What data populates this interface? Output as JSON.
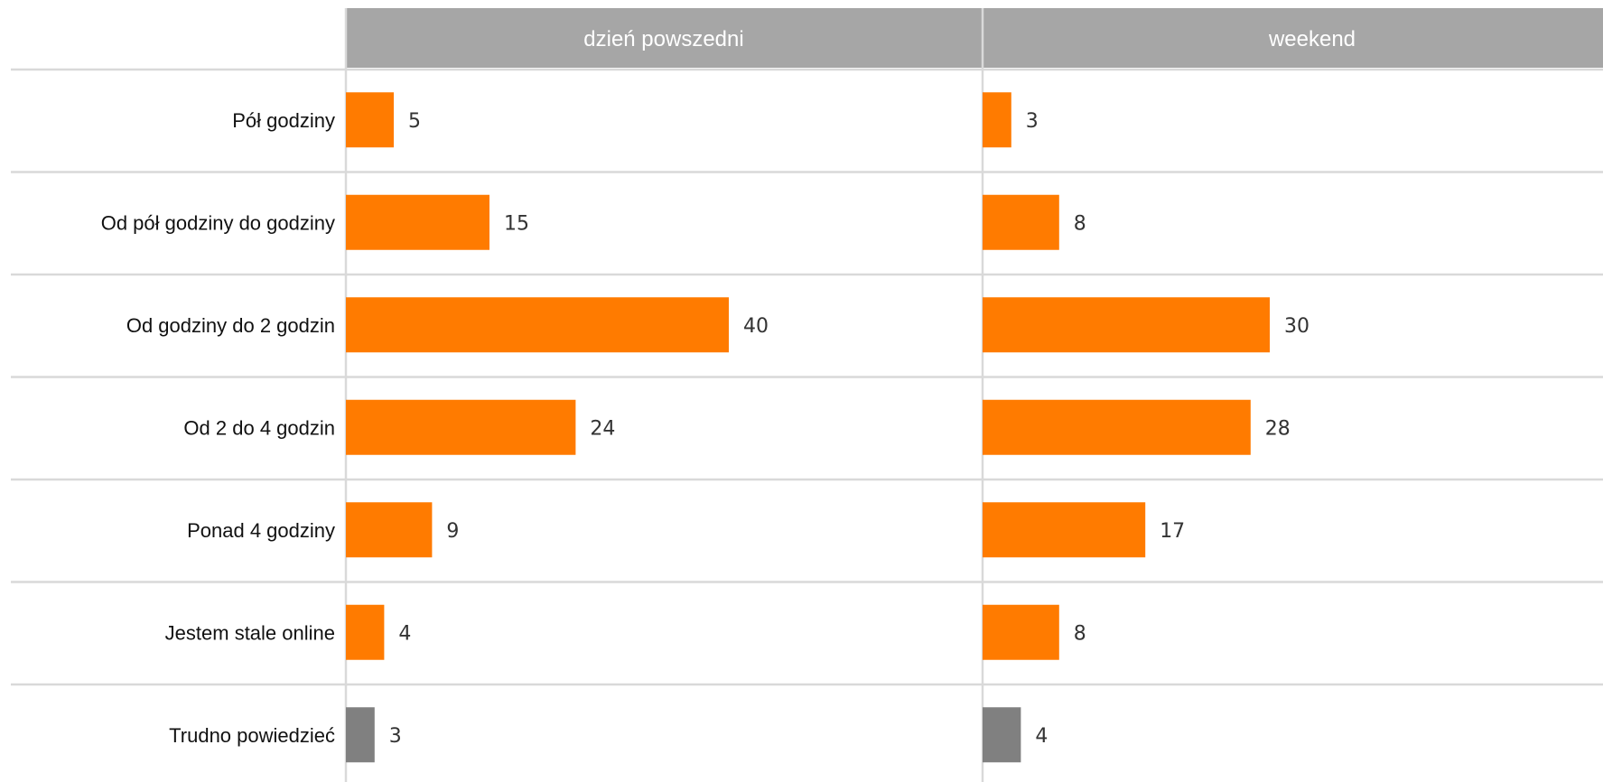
{
  "chart_data": {
    "type": "bar",
    "orientation": "horizontal",
    "facets": [
      "dzień powszedni",
      "weekend"
    ],
    "categories": [
      "Pół godziny",
      "Od pół godziny do godziny",
      "Od godziny do 2 godzin",
      "Od 2 do 4 godzin",
      "Ponad 4 godziny",
      "Jestem stale online",
      "Trudno powiedzieć"
    ],
    "series": [
      {
        "facet": "dzień powszedni",
        "values": [
          5,
          15,
          40,
          24,
          9,
          4,
          3
        ]
      },
      {
        "facet": "weekend",
        "values": [
          3,
          8,
          30,
          28,
          17,
          8,
          4
        ]
      }
    ],
    "value_labels": {
      "dzien_powszedni": [
        "5",
        "15",
        "40",
        "24",
        "9",
        "4",
        "3"
      ],
      "weekend": [
        "3",
        "8",
        "30",
        "28",
        "17",
        "8",
        "4"
      ]
    },
    "xlim": [
      0,
      66
    ],
    "grid": true,
    "legend": "none",
    "colors": {
      "bar": "#ff7b00",
      "bar_muted": "#808080",
      "header_bg": "#a6a6a6",
      "header_text": "#ffffff",
      "grid": "#d9d9d9"
    }
  }
}
